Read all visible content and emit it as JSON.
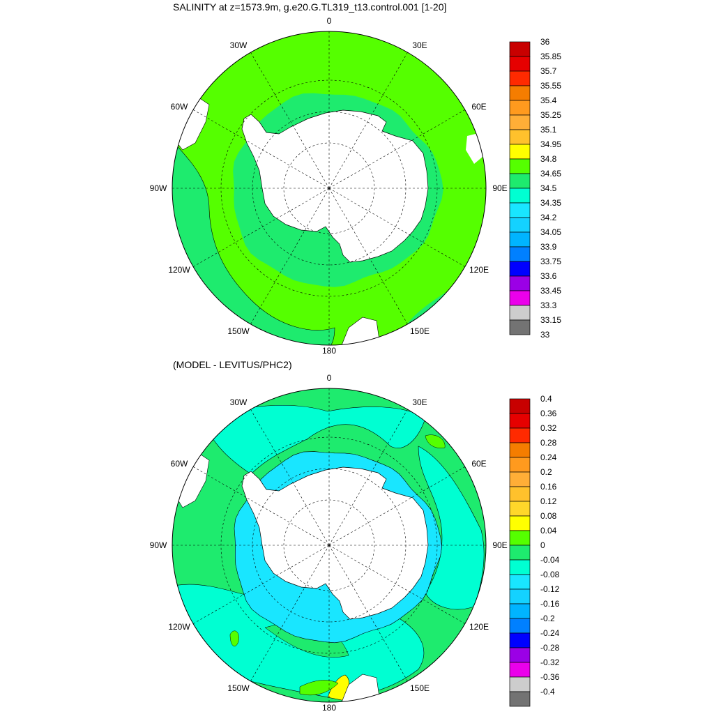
{
  "panels": [
    {
      "title": "SALINITY at z=1573.9m, g.e20.G.TL319_t13.control.001 [1-20]",
      "lon_labels": [
        "0",
        "30E",
        "60E",
        "90E",
        "120E",
        "150E",
        "180",
        "150W",
        "120W",
        "90W",
        "60W",
        "30W"
      ],
      "colorbar": {
        "labels": [
          "36",
          "35.85",
          "35.7",
          "35.55",
          "35.4",
          "35.25",
          "35.1",
          "34.95",
          "34.8",
          "34.65",
          "34.5",
          "34.35",
          "34.2",
          "34.05",
          "33.9",
          "33.75",
          "33.6",
          "33.45",
          "33.3",
          "33.15",
          "33"
        ],
        "colors": [
          "#c80000",
          "#e60000",
          "#ff2a00",
          "#f57d00",
          "#ff9a1e",
          "#ffae37",
          "#ffc12c",
          "#ffff00",
          "#55ff00",
          "#1eeb6e",
          "#00ffd2",
          "#19e6ff",
          "#14d2ff",
          "#00b4ff",
          "#0080ff",
          "#0000ff",
          "#9b00e6",
          "#eb00eb",
          "#cdcdcd",
          "#737373"
        ]
      }
    },
    {
      "title": "(MODEL - LEVITUS/PHC2)",
      "lon_labels": [
        "0",
        "30E",
        "60E",
        "90E",
        "120E",
        "150E",
        "180",
        "150W",
        "120W",
        "90W",
        "60W",
        "30W"
      ],
      "colorbar": {
        "labels": [
          "0.4",
          "0.36",
          "0.32",
          "0.28",
          "0.24",
          "0.2",
          "0.16",
          "0.12",
          "0.08",
          "0.04",
          "0",
          "-0.04",
          "-0.08",
          "-0.12",
          "-0.16",
          "-0.2",
          "-0.24",
          "-0.28",
          "-0.32",
          "-0.36",
          "-0.4"
        ],
        "colors": [
          "#c80000",
          "#e60000",
          "#ff2a00",
          "#f57d00",
          "#ff9a1e",
          "#ffae37",
          "#ffc12c",
          "#ffd72a",
          "#ffff00",
          "#55ff00",
          "#1eeb6e",
          "#00ffd2",
          "#19e6ff",
          "#14d2ff",
          "#00b4ff",
          "#0080ff",
          "#0000ff",
          "#9b00e6",
          "#eb00eb",
          "#cdcdcd",
          "#737373"
        ]
      }
    }
  ]
}
